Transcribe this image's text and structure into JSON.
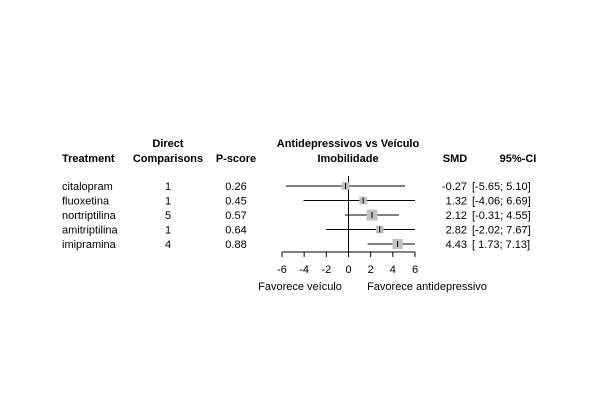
{
  "chart_data": {
    "type": "forest",
    "title_line1": "Antidepressivos vs Veículo",
    "title_line2": "Imobilidade",
    "columns": {
      "treatment": "Treatment",
      "direct_line1": "Direct",
      "direct_line2": "Comparisons",
      "pscore": "P-score",
      "smd": "SMD",
      "ci": "95%-CI"
    },
    "rows": [
      {
        "treatment": "citalopram",
        "direct": "1",
        "pscore": "0.26",
        "smd": -0.27,
        "lower": -5.65,
        "upper": 5.1,
        "smd_text": "-0.27",
        "ci_text": "[-5.65; 5.10]"
      },
      {
        "treatment": "fluoxetina",
        "direct": "1",
        "pscore": "0.45",
        "smd": 1.32,
        "lower": -4.06,
        "upper": 6.69,
        "smd_text": "1.32",
        "ci_text": "[-4.06; 6.69]"
      },
      {
        "treatment": "nortriptilina",
        "direct": "5",
        "pscore": "0.57",
        "smd": 2.12,
        "lower": -0.31,
        "upper": 4.55,
        "smd_text": "2.12",
        "ci_text": "[-0.31; 4.55]"
      },
      {
        "treatment": "amitriptilina",
        "direct": "1",
        "pscore": "0.64",
        "smd": 2.82,
        "lower": -2.02,
        "upper": 7.67,
        "smd_text": "2.82",
        "ci_text": "[-2.02; 7.67]"
      },
      {
        "treatment": "imipramina",
        "direct": "4",
        "pscore": "0.88",
        "smd": 4.43,
        "lower": 1.73,
        "upper": 7.13,
        "smd_text": "4.43",
        "ci_text": "[ 1.73; 7.13]"
      }
    ],
    "x_ticks": [
      -6,
      -4,
      -2,
      0,
      2,
      4,
      6
    ],
    "x_tick_labels": [
      "-6",
      "-4",
      "-2",
      "0",
      "2",
      "4",
      "6"
    ],
    "xlim": [
      -6,
      6
    ],
    "label_left": "Favorece veículo",
    "label_right": "Favorece antidepressivo",
    "box_color": "#c0c0c0",
    "line_color": "#000000"
  }
}
